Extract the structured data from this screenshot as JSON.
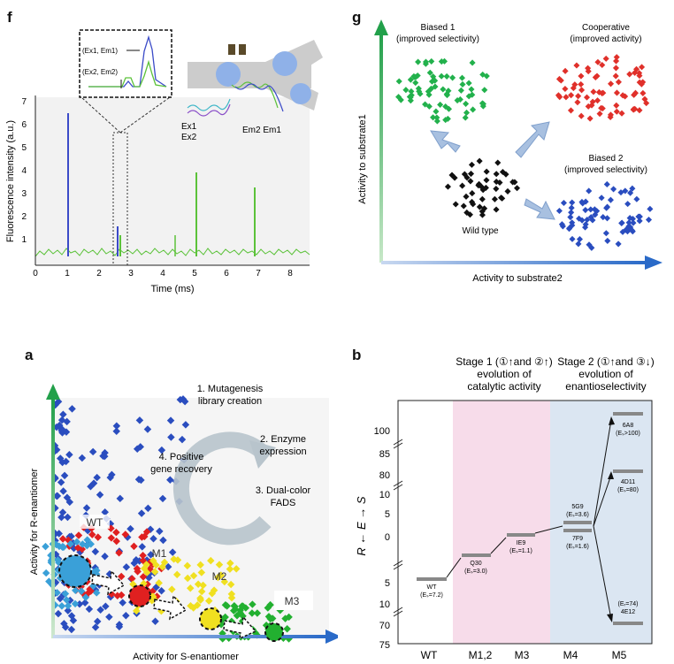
{
  "panels": {
    "f": {
      "label": "f",
      "ylabel": "Fluorescence intensity (a.u.)",
      "xlabel": "Time (ms)",
      "yticks": [
        "1",
        "2",
        "3",
        "4",
        "5",
        "6",
        "7"
      ],
      "xticks": [
        "0",
        "1",
        "2",
        "3",
        "4",
        "5",
        "6",
        "7",
        "8"
      ],
      "inset_labels": [
        "(Ex1, Em1)",
        "(Ex2, Em2)"
      ],
      "excitation_labels": [
        "Ex1",
        "Ex2"
      ],
      "emission_labels": [
        "Em2 Em1"
      ],
      "colors": {
        "ex1": "#3b4bc8",
        "ex2": "#5cc23a"
      }
    },
    "g": {
      "label": "g",
      "ylabel": "Activity to substrate1",
      "xlabel": "Activity to substrate2",
      "groups": [
        {
          "name": "Biased 1",
          "sub": "(improved selectivity)",
          "color": "#22b14c"
        },
        {
          "name": "Cooperative",
          "sub": "(improved activity)",
          "color": "#e0302a"
        },
        {
          "name": "Biased 2",
          "sub": "(improved selectivity)",
          "color": "#2a4dbf"
        },
        {
          "name": "Wild type",
          "sub": "",
          "color": "#111111"
        }
      ]
    },
    "a": {
      "label": "a",
      "ylabel": "Activity for R-enantiomer",
      "xlabel": "Activity for S-enantiomer",
      "steps": [
        "1. Mutagenesis",
        "library creation",
        "2. Enzyme",
        "expression",
        "3. Dual-color",
        "FADS",
        "4. Positive",
        "gene recovery"
      ],
      "nodes": [
        "WT",
        "M1",
        "M2",
        "M3"
      ],
      "node_colors": [
        "#3aa0d8",
        "#e02020",
        "#f0e020",
        "#22b030"
      ]
    },
    "b": {
      "label": "b",
      "stage1": [
        "Stage 1 (①↑and ②↑)",
        "evolution of",
        "catalytic activity"
      ],
      "stage2": [
        "Stage 2 (①↑and ③↓)",
        "evolution of",
        "enantioselectivity"
      ],
      "axis_title": "R ← E → S",
      "yticks_top": [
        "100",
        "85",
        "80"
      ],
      "yticks_mid": [
        "10",
        "5",
        "0"
      ],
      "yticks_bot": [
        "5",
        "10",
        "70",
        "75"
      ],
      "columns": [
        "WT",
        "M1,2",
        "M3",
        "M4",
        "M5"
      ],
      "variants": [
        {
          "name": "WT",
          "e": "(Eₛ=7.2)"
        },
        {
          "name": "Q30",
          "e": "(Eₛ=3.0)"
        },
        {
          "name": "IE9",
          "e": "(Eₛ=1.1)"
        },
        {
          "name": "5G9",
          "e": "(Eₛ=3.6)"
        },
        {
          "name": "7F9",
          "e": "(Eₛ=1.6)"
        },
        {
          "name": "6A8",
          "e": "(Eₛ>100)"
        },
        {
          "name": "4D11",
          "e": "(Eₛ=80)"
        },
        {
          "name": "4E12",
          "e": "(Eᵣ=74)"
        }
      ]
    }
  }
}
